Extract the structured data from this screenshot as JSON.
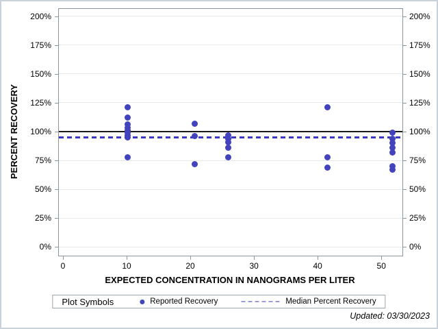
{
  "page": {
    "footer_note": "Updated: 03/30/2023"
  },
  "chart_data": {
    "type": "scatter",
    "title": "",
    "xlabel": "EXPECTED CONCENTRATION IN NANOGRAMS PER LITER",
    "ylabel": "PERCENT RECOVERY",
    "xlim": [
      -0.75,
      53.2
    ],
    "ylim": [
      -7,
      207
    ],
    "grid": "horizontal-only",
    "grid_color": "#e8e8e8",
    "axis_color": "#8a949c",
    "x_ticks": [
      {
        "value": 0,
        "label": "0"
      },
      {
        "value": 10,
        "label": "10"
      },
      {
        "value": 20,
        "label": "20"
      },
      {
        "value": 30,
        "label": "30"
      },
      {
        "value": 40,
        "label": "40"
      },
      {
        "value": 50,
        "label": "50"
      }
    ],
    "y_ticks": [
      {
        "value": 0,
        "label": "0%"
      },
      {
        "value": 25,
        "label": "25%"
      },
      {
        "value": 50,
        "label": "50%"
      },
      {
        "value": 75,
        "label": "75%"
      },
      {
        "value": 100,
        "label": "100%"
      },
      {
        "value": 125,
        "label": "125%"
      },
      {
        "value": 150,
        "label": "150%"
      },
      {
        "value": 175,
        "label": "175%"
      },
      {
        "value": 200,
        "label": "200%"
      }
    ],
    "y_axis_mirrored_right": true,
    "reference_lines": [
      {
        "name": "100-percent-reference-line",
        "y": 100,
        "style": "solid",
        "color": "#1a1a1a"
      },
      {
        "name": "median-percent-recovery-line",
        "y": 95,
        "style": "dashed",
        "color": "#3838c2"
      }
    ],
    "series": [
      {
        "name": "Reported Recovery",
        "marker": "filled-circle",
        "color": "#4343bd",
        "points": [
          {
            "x": 10.2,
            "y": 121
          },
          {
            "x": 10.2,
            "y": 112
          },
          {
            "x": 10.2,
            "y": 106
          },
          {
            "x": 10.2,
            "y": 103
          },
          {
            "x": 10.2,
            "y": 101
          },
          {
            "x": 10.2,
            "y": 99
          },
          {
            "x": 10.2,
            "y": 97
          },
          {
            "x": 10.2,
            "y": 95
          },
          {
            "x": 10.2,
            "y": 78
          },
          {
            "x": 20.7,
            "y": 107
          },
          {
            "x": 20.7,
            "y": 96
          },
          {
            "x": 20.7,
            "y": 72
          },
          {
            "x": 26.0,
            "y": 97
          },
          {
            "x": 26.0,
            "y": 94
          },
          {
            "x": 26.0,
            "y": 91
          },
          {
            "x": 26.0,
            "y": 86
          },
          {
            "x": 26.0,
            "y": 78
          },
          {
            "x": 41.5,
            "y": 121
          },
          {
            "x": 41.5,
            "y": 78
          },
          {
            "x": 41.5,
            "y": 69
          },
          {
            "x": 51.7,
            "y": 99
          },
          {
            "x": 51.7,
            "y": 94
          },
          {
            "x": 51.7,
            "y": 90
          },
          {
            "x": 51.7,
            "y": 86
          },
          {
            "x": 51.7,
            "y": 82
          },
          {
            "x": 51.7,
            "y": 70
          },
          {
            "x": 51.7,
            "y": 67
          }
        ]
      }
    ],
    "legend": {
      "title": "Plot Symbols",
      "position": "bottom-center",
      "entries": [
        {
          "label": "Reported Recovery",
          "swatch": "dot",
          "color": "#4343bd"
        },
        {
          "label": "Median Percent Recovery",
          "swatch": "dashed-line",
          "color": "#9b9bdb"
        }
      ]
    }
  }
}
